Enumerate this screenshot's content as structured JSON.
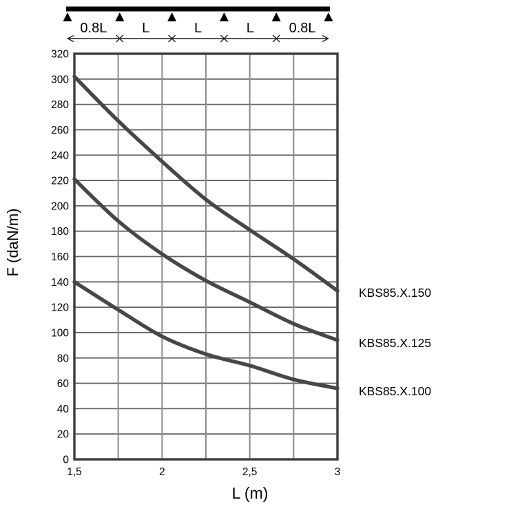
{
  "colors": {
    "background": "#ffffff",
    "curve": "#474747",
    "grid_horizontal": "#646464",
    "grid_vertical": "#8c8c8c",
    "border": "#3c3c3c",
    "beam": "#000000",
    "dimension_line": "#1f1f1f",
    "text": "#000000"
  },
  "beam_diagram": {
    "supports": 6,
    "span_labels": [
      "0.8L",
      "L",
      "L",
      "L",
      "0.8L"
    ]
  },
  "chart_data": {
    "type": "line",
    "title": "",
    "xlabel": "L (m)",
    "ylabel": "F (daN/m)",
    "xlim": [
      1.5,
      3
    ],
    "ylim": [
      0,
      320
    ],
    "x_grid_step": 0.25,
    "y_grid_step": 20,
    "grid": true,
    "legend_position": "right",
    "x_ticks": [
      {
        "value": 1.5,
        "label": "1,5"
      },
      {
        "value": 2,
        "label": "2"
      },
      {
        "value": 2.5,
        "label": "2,5"
      },
      {
        "value": 3,
        "label": "3"
      }
    ],
    "y_tick_labels": [
      "0",
      "20",
      "40",
      "60",
      "80",
      "100",
      "120",
      "140",
      "160",
      "180",
      "200",
      "220",
      "240",
      "260",
      "280",
      "300",
      "320"
    ],
    "x": [
      1.5,
      1.75,
      2.0,
      2.25,
      2.5,
      2.75,
      3.0
    ],
    "series": [
      {
        "name": "KBS85.X.150",
        "values": [
          302,
          267,
          235,
          205,
          181,
          158,
          133
        ]
      },
      {
        "name": "KBS85.X.125",
        "values": [
          221,
          188,
          162,
          141,
          124,
          107,
          94
        ]
      },
      {
        "name": "KBS85.X.100",
        "values": [
          140,
          118,
          97,
          83,
          74,
          63,
          56
        ]
      }
    ]
  }
}
